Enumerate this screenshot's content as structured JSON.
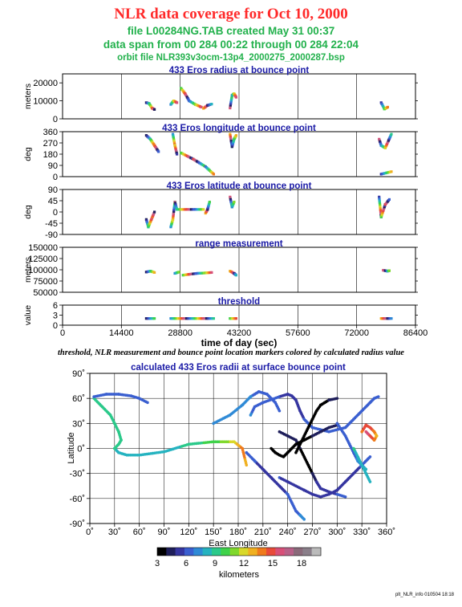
{
  "header": {
    "title": "NLR data coverage for Oct 10, 2000",
    "file_line": "file L00284NG.TAB created May 31 00:37",
    "span_line": "data span from 00 284 00:22 through 00 284 22:04",
    "orbit_line": "orbit file NLR393v3ocm-13p4_2000275_2000287.bsp"
  },
  "caption": "threshold, NLR measurement and bounce point location markers colored by calculated radius value",
  "footer": "plt_NLR_info 010504 18:18",
  "colors": {
    "panel_title": "#1a1aa6",
    "header_title": "#ff2a2a",
    "header_info": "#22b14c"
  },
  "chart_data": [
    {
      "type": "scatter",
      "title": "433 Eros radius at bounce point",
      "ylabel": "meters",
      "ylim": [
        0,
        25000
      ],
      "yticks": [
        0,
        10000,
        20000
      ],
      "ytick_labels": [
        "0",
        "10000",
        "20000"
      ],
      "xlim": [
        0,
        86400
      ],
      "segments": [
        {
          "x": [
            20500,
            21200,
            21900,
            22500
          ],
          "y": [
            9000,
            8500,
            6000,
            5200
          ]
        },
        {
          "x": [
            26500,
            27200,
            28000
          ],
          "y": [
            8000,
            10000,
            9000
          ]
        },
        {
          "x": [
            29000,
            30000,
            31000,
            32500,
            34000
          ],
          "y": [
            17000,
            14000,
            10000,
            8000,
            6500
          ]
        },
        {
          "x": [
            34500,
            35500,
            36500
          ],
          "y": [
            5800,
            7500,
            8200
          ]
        },
        {
          "x": [
            41000,
            41500,
            42000,
            42500
          ],
          "y": [
            6000,
            13000,
            14000,
            12000
          ]
        },
        {
          "x": [
            78000,
            78800,
            79600
          ],
          "y": [
            9000,
            5500,
            6500
          ]
        }
      ]
    },
    {
      "type": "scatter",
      "title": "433 Eros longitude at bounce point",
      "ylabel": "deg",
      "ylim": [
        0,
        360
      ],
      "yticks": [
        0,
        90,
        180,
        270,
        360
      ],
      "ytick_labels": [
        "0",
        "90",
        "180",
        "270",
        "360"
      ],
      "xlim": [
        0,
        86400
      ],
      "segments": [
        {
          "x": [
            20500,
            21500,
            22500,
            23500
          ],
          "y": [
            330,
            300,
            250,
            200
          ]
        },
        {
          "x": [
            27000,
            27500,
            28000
          ],
          "y": [
            340,
            250,
            180
          ]
        },
        {
          "x": [
            29000,
            32000,
            35000,
            37000
          ],
          "y": [
            190,
            140,
            80,
            20
          ]
        },
        {
          "x": [
            41000,
            41500,
            42000,
            42500
          ],
          "y": [
            340,
            240,
            300,
            330
          ]
        },
        {
          "x": [
            77500,
            78000,
            79000,
            80500
          ],
          "y": [
            300,
            250,
            230,
            340
          ]
        },
        {
          "x": [
            78000,
            80500
          ],
          "y": [
            20,
            40
          ]
        }
      ]
    },
    {
      "type": "scatter",
      "title": "433 Eros latitude at bounce point",
      "ylabel": "deg",
      "ylim": [
        -90,
        90
      ],
      "yticks": [
        -90,
        -45,
        0,
        45,
        90
      ],
      "ytick_labels": [
        "-90",
        "-45",
        "0",
        "45",
        "90"
      ],
      "xlim": [
        0,
        86400
      ],
      "segments": [
        {
          "x": [
            20500,
            21000,
            22000,
            22500
          ],
          "y": [
            -30,
            -60,
            -20,
            0
          ]
        },
        {
          "x": [
            26500,
            27000,
            27500,
            28000
          ],
          "y": [
            -60,
            -30,
            40,
            10
          ]
        },
        {
          "x": [
            28500,
            30500,
            32500,
            34500
          ],
          "y": [
            10,
            10,
            10,
            10
          ]
        },
        {
          "x": [
            35000,
            35500,
            36000
          ],
          "y": [
            -5,
            10,
            40
          ]
        },
        {
          "x": [
            41000,
            41500,
            42000
          ],
          "y": [
            60,
            20,
            40
          ]
        },
        {
          "x": [
            77500,
            78000,
            79000,
            80000
          ],
          "y": [
            60,
            -20,
            30,
            50
          ]
        }
      ]
    },
    {
      "type": "scatter",
      "title": "range measurement",
      "ylabel": "meters",
      "ylim": [
        50000,
        150000
      ],
      "yticks": [
        50000,
        75000,
        100000,
        125000,
        150000
      ],
      "ytick_labels": [
        "50000",
        "75000",
        "100000",
        "125000",
        "150000"
      ],
      "xlim": [
        0,
        86400
      ],
      "segments": [
        {
          "x": [
            20500,
            21500,
            22500
          ],
          "y": [
            95000,
            97000,
            94000
          ]
        },
        {
          "x": [
            27500,
            28500
          ],
          "y": [
            92000,
            95000
          ]
        },
        {
          "x": [
            29500,
            31000,
            33000,
            35000,
            36500
          ],
          "y": [
            88000,
            90000,
            92000,
            93000,
            94000
          ]
        },
        {
          "x": [
            41000,
            42000,
            42500
          ],
          "y": [
            97000,
            92000,
            88000
          ]
        },
        {
          "x": [
            78500,
            79500,
            80000
          ],
          "y": [
            99000,
            97000,
            98000
          ]
        }
      ]
    },
    {
      "type": "scatter",
      "title": "threshold",
      "ylabel": "value",
      "ylim": [
        0,
        6
      ],
      "yticks": [
        0,
        3,
        6
      ],
      "ytick_labels": [
        "0",
        "3",
        "6"
      ],
      "xlim": [
        0,
        86400
      ],
      "xticks": [
        0,
        14400,
        28800,
        43200,
        57600,
        72000,
        86400
      ],
      "xtick_labels": [
        "0",
        "14400",
        "28800",
        "43200",
        "57600",
        "72000",
        "86400"
      ],
      "xlabel": "time of day (sec)",
      "segments": [
        {
          "x": [
            20500,
            22500
          ],
          "y": [
            2,
            2
          ]
        },
        {
          "x": [
            26500,
            37000
          ],
          "y": [
            2,
            2
          ]
        },
        {
          "x": [
            41000,
            42500
          ],
          "y": [
            2,
            2
          ]
        },
        {
          "x": [
            78000,
            80500
          ],
          "y": [
            2,
            2
          ]
        }
      ]
    },
    {
      "type": "scatter",
      "title": "calculated 433 Eros radii at surface bounce point",
      "xlabel": "East Longitude",
      "ylabel": "Latitude",
      "xlim": [
        0,
        360
      ],
      "ylim": [
        -90,
        90
      ],
      "xticks": [
        0,
        30,
        60,
        90,
        120,
        150,
        180,
        210,
        240,
        270,
        300,
        330,
        360
      ],
      "xtick_labels": [
        "0˚",
        "30˚",
        "60˚",
        "90˚",
        "120˚",
        "150˚",
        "180˚",
        "210˚",
        "240˚",
        "270˚",
        "300˚",
        "330˚",
        "360˚"
      ],
      "yticks": [
        -90,
        -60,
        -30,
        0,
        30,
        60,
        90
      ],
      "ytick_labels": [
        "-90˚",
        "-60˚",
        "-30˚",
        "0˚",
        "30˚",
        "60˚",
        "90˚"
      ],
      "grid": true,
      "tracks": [
        {
          "lon": [
            5,
            15,
            25,
            30,
            35,
            38,
            35,
            30,
            35,
            45,
            60,
            90,
            120,
            150,
            175,
            185,
            190
          ],
          "lat": [
            60,
            50,
            40,
            30,
            20,
            10,
            5,
            0,
            -5,
            -8,
            -8,
            -4,
            5,
            8,
            8,
            0,
            -20
          ],
          "r": [
            9,
            9,
            9,
            9,
            9,
            9,
            9,
            9,
            8,
            8,
            8,
            8,
            9,
            10,
            12,
            14,
            13
          ]
        },
        {
          "lon": [
            5,
            20,
            35,
            50,
            60,
            70
          ],
          "lat": [
            62,
            65,
            65,
            63,
            60,
            55
          ],
          "r": [
            6,
            6,
            6,
            6,
            6,
            6
          ]
        },
        {
          "lon": [
            195,
            200,
            210,
            230,
            240,
            245,
            250,
            255,
            260,
            270,
            290,
            310,
            320,
            330,
            340,
            345,
            350
          ],
          "lat": [
            40,
            50,
            55,
            62,
            65,
            63,
            58,
            45,
            35,
            25,
            20,
            25,
            35,
            45,
            55,
            60,
            62
          ],
          "r": [
            7,
            6,
            6,
            6,
            5,
            5,
            5,
            5,
            6,
            6,
            6,
            6,
            6,
            6,
            6,
            6,
            6
          ]
        },
        {
          "lon": [
            190,
            200,
            210,
            220,
            230,
            240,
            245,
            250,
            255,
            260
          ],
          "lat": [
            -5,
            -15,
            -25,
            -35,
            -45,
            -55,
            -65,
            -75,
            -80,
            -85
          ],
          "r": [
            6,
            6,
            5,
            5,
            5,
            6,
            6,
            6,
            7,
            7
          ]
        },
        {
          "lon": [
            230,
            240,
            250,
            255,
            260,
            265,
            270,
            275,
            280,
            290,
            300,
            310
          ],
          "lat": [
            20,
            15,
            10,
            0,
            -10,
            -20,
            -30,
            -40,
            -48,
            -52,
            -55,
            -58
          ],
          "r": [
            4,
            4,
            4,
            4,
            3,
            3,
            4,
            5,
            5,
            5,
            6,
            6
          ]
        },
        {
          "lon": [
            230,
            240,
            250,
            260,
            270,
            280,
            290,
            300,
            310,
            320,
            330,
            340
          ],
          "lat": [
            -35,
            -40,
            -45,
            -50,
            -55,
            -58,
            -55,
            -50,
            -40,
            -30,
            -20,
            -10
          ],
          "r": [
            6,
            5,
            5,
            5,
            5,
            5,
            5,
            5,
            5,
            5,
            6,
            6
          ]
        },
        {
          "lon": [
            250,
            255,
            260,
            265,
            270,
            275,
            280,
            285,
            290,
            300
          ],
          "lat": [
            -5,
            5,
            15,
            25,
            35,
            45,
            52,
            55,
            58,
            60
          ],
          "r": [
            3,
            3,
            3,
            3,
            3,
            3,
            3,
            3,
            4,
            4
          ]
        },
        {
          "lon": [
            220,
            225,
            230,
            235,
            240,
            245,
            250,
            260,
            270,
            280,
            290,
            300
          ],
          "lat": [
            0,
            -5,
            -8,
            -10,
            -5,
            0,
            5,
            10,
            15,
            20,
            25,
            28
          ],
          "r": [
            3,
            3,
            3,
            3,
            3,
            3,
            3,
            3,
            4,
            4,
            4,
            4
          ]
        },
        {
          "lon": [
            300,
            310,
            315,
            320,
            325,
            330,
            335
          ],
          "lat": [
            30,
            15,
            5,
            -5,
            -15,
            -20,
            -25
          ],
          "r": [
            6,
            6,
            6,
            6,
            7,
            7,
            8
          ]
        },
        {
          "lon": [
            330,
            335,
            340,
            345,
            348,
            345,
            340,
            335
          ],
          "lat": [
            20,
            28,
            25,
            20,
            15,
            10,
            15,
            20
          ],
          "r": [
            14,
            15,
            15,
            14,
            13,
            14,
            15,
            16
          ]
        },
        {
          "lon": [
            320,
            325,
            330,
            335,
            340
          ],
          "lat": [
            0,
            -10,
            -20,
            -30,
            -40
          ],
          "r": [
            9,
            8,
            8,
            8,
            8
          ]
        },
        {
          "lon": [
            150,
            170,
            185,
            195,
            205,
            215,
            220,
            225,
            230
          ],
          "lat": [
            30,
            40,
            52,
            62,
            68,
            65,
            60,
            55,
            45
          ],
          "r": [
            7,
            7,
            7,
            7,
            6,
            6,
            6,
            6,
            6
          ]
        }
      ],
      "colorbar": {
        "label": "kilometers",
        "min": 3,
        "max": 20,
        "ticks": [
          3,
          6,
          9,
          12,
          15,
          18
        ],
        "tick_labels": [
          "3",
          "6",
          "9",
          "12",
          "15",
          "18"
        ],
        "colors": [
          "#000000",
          "#1e1e5a",
          "#3535a0",
          "#3a5fd0",
          "#2f8ad6",
          "#25b3c0",
          "#2bc98a",
          "#3fd24a",
          "#7fd82c",
          "#d8d82a",
          "#f0b020",
          "#f07a1c",
          "#e84a3a",
          "#d84f78",
          "#b86088",
          "#8a6a7a",
          "#8a7f8a",
          "#bbbbbb"
        ]
      }
    }
  ]
}
